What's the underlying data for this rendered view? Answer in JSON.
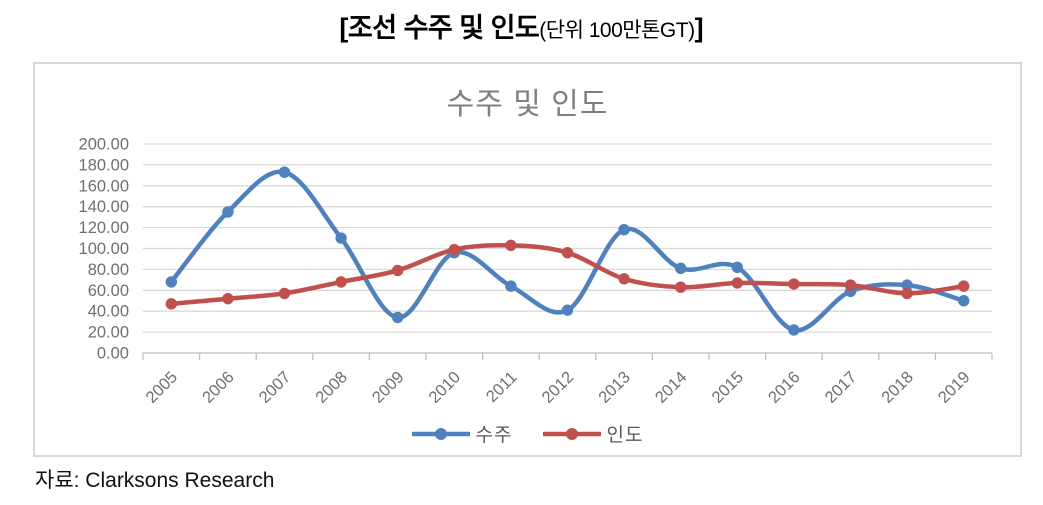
{
  "header": {
    "main": "[조선 수주 및 인도",
    "unit": "(단위 100만톤GT)",
    "close": "]"
  },
  "source": "자료: Clarksons Research",
  "chart_data": {
    "type": "line",
    "title": "수주 및 인도",
    "xlabel": "",
    "ylabel": "",
    "categories": [
      "2005",
      "2006",
      "2007",
      "2008",
      "2009",
      "2010",
      "2011",
      "2012",
      "2013",
      "2014",
      "2015",
      "2016",
      "2017",
      "2018",
      "2019"
    ],
    "series": [
      {
        "name": "수주",
        "color": "#4F81BD",
        "values": [
          68,
          135,
          173,
          110,
          34,
          96,
          64,
          41,
          118,
          81,
          82,
          22,
          59,
          65,
          50
        ]
      },
      {
        "name": "인도",
        "color": "#C0504D",
        "values": [
          47,
          52,
          57,
          68,
          79,
          99,
          103,
          96,
          71,
          63,
          67,
          66,
          65,
          57,
          64
        ]
      }
    ],
    "ylim": [
      0,
      200
    ],
    "ytick_step": 20,
    "ytick_decimals": 2,
    "smooth": true,
    "grid": "horizontal",
    "legend_position": "bottom",
    "colors": {
      "grid": "#d9d9d9",
      "axis": "#bfbfbf",
      "tick_label": "#6f6f6f",
      "title": "#7f7f7f",
      "legend_text": "#595959"
    }
  }
}
